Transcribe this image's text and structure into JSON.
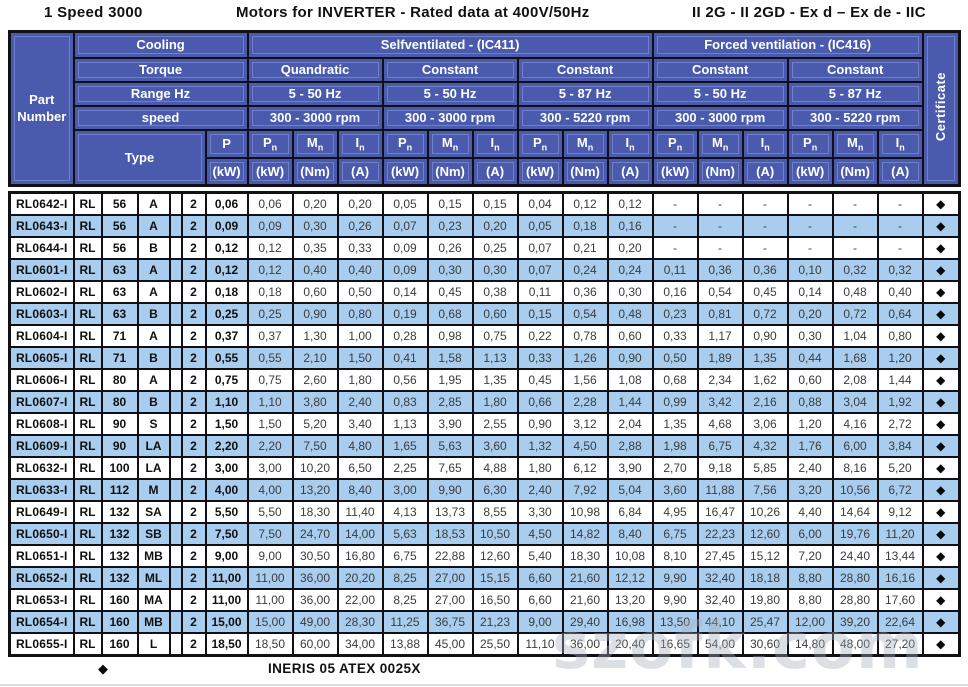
{
  "title": {
    "left": "1 Speed 3000",
    "center": "Motors for INVERTER - Rated data at 400V/50Hz",
    "right": "II 2G - II 2GD - Ex d – Ex de - IIC"
  },
  "header": {
    "part_label": "Part Number",
    "cooling_label": "Cooling",
    "torque_label": "Torque",
    "range_label": "Range Hz",
    "speed_label": "speed",
    "type_label": "Type",
    "p_label": "P",
    "p_unit": "(kW)",
    "certificate_label": "Certificate",
    "cooling_groups": [
      {
        "label": "Selfventilated - (IC411)",
        "span": 9
      },
      {
        "label": "Forced ventilation - (IC416)",
        "span": 6
      }
    ],
    "torque_groups": [
      "Quandratic",
      "Constant",
      "Constant",
      "Constant",
      "Constant"
    ],
    "range_groups": [
      "5 - 50 Hz",
      "5 - 50 Hz",
      "5 - 87 Hz",
      "5 - 50 Hz",
      "5 - 87 Hz"
    ],
    "speed_groups": [
      "300 - 3000 rpm",
      "300 - 3000 rpm",
      "300 - 5220 rpm",
      "300 - 3000 rpm",
      "300 - 5220 rpm"
    ],
    "measure": {
      "symbols": [
        "P",
        "M",
        "I"
      ],
      "sub": "n",
      "units": [
        "(kW)",
        "(Nm)",
        "(A)"
      ],
      "groups": 5
    }
  },
  "colors": {
    "header_blue": "#4a5bad",
    "row_blue": "#a9cdee",
    "border_black": "#101016"
  },
  "cert_symbol": "◆",
  "rows": [
    {
      "part": "RL0642-I",
      "series": "RL",
      "frame": "56",
      "size": "A",
      "poles": "2",
      "p": "0,06",
      "values": [
        "0,06",
        "0,20",
        "0,20",
        "0,05",
        "0,15",
        "0,15",
        "0,04",
        "0,12",
        "0,12",
        "-",
        "-",
        "-",
        "-",
        "-",
        "-"
      ]
    },
    {
      "part": "RL0643-I",
      "series": "RL",
      "frame": "56",
      "size": "A",
      "poles": "2",
      "p": "0,09",
      "values": [
        "0,09",
        "0,30",
        "0,26",
        "0,07",
        "0,23",
        "0,20",
        "0,05",
        "0,18",
        "0,16",
        "-",
        "-",
        "-",
        "-",
        "-",
        "-"
      ]
    },
    {
      "part": "RL0644-I",
      "series": "RL",
      "frame": "56",
      "size": "B",
      "poles": "2",
      "p": "0,12",
      "values": [
        "0,12",
        "0,35",
        "0,33",
        "0,09",
        "0,26",
        "0,25",
        "0,07",
        "0,21",
        "0,20",
        "-",
        "-",
        "-",
        "-",
        "-",
        "-"
      ]
    },
    {
      "part": "RL0601-I",
      "series": "RL",
      "frame": "63",
      "size": "A",
      "poles": "2",
      "p": "0,12",
      "values": [
        "0,12",
        "0,40",
        "0,40",
        "0,09",
        "0,30",
        "0,30",
        "0,07",
        "0,24",
        "0,24",
        "0,11",
        "0,36",
        "0,36",
        "0,10",
        "0,32",
        "0,32"
      ]
    },
    {
      "part": "RL0602-I",
      "series": "RL",
      "frame": "63",
      "size": "A",
      "poles": "2",
      "p": "0,18",
      "values": [
        "0,18",
        "0,60",
        "0,50",
        "0,14",
        "0,45",
        "0,38",
        "0,11",
        "0,36",
        "0,30",
        "0,16",
        "0,54",
        "0,45",
        "0,14",
        "0,48",
        "0,40"
      ]
    },
    {
      "part": "RL0603-I",
      "series": "RL",
      "frame": "63",
      "size": "B",
      "poles": "2",
      "p": "0,25",
      "values": [
        "0,25",
        "0,90",
        "0,80",
        "0,19",
        "0,68",
        "0,60",
        "0,15",
        "0,54",
        "0,48",
        "0,23",
        "0,81",
        "0,72",
        "0,20",
        "0,72",
        "0,64"
      ]
    },
    {
      "part": "RL0604-I",
      "series": "RL",
      "frame": "71",
      "size": "A",
      "poles": "2",
      "p": "0,37",
      "values": [
        "0,37",
        "1,30",
        "1,00",
        "0,28",
        "0,98",
        "0,75",
        "0,22",
        "0,78",
        "0,60",
        "0,33",
        "1,17",
        "0,90",
        "0,30",
        "1,04",
        "0,80"
      ]
    },
    {
      "part": "RL0605-I",
      "series": "RL",
      "frame": "71",
      "size": "B",
      "poles": "2",
      "p": "0,55",
      "values": [
        "0,55",
        "2,10",
        "1,50",
        "0,41",
        "1,58",
        "1,13",
        "0,33",
        "1,26",
        "0,90",
        "0,50",
        "1,89",
        "1,35",
        "0,44",
        "1,68",
        "1,20"
      ]
    },
    {
      "part": "RL0606-I",
      "series": "RL",
      "frame": "80",
      "size": "A",
      "poles": "2",
      "p": "0,75",
      "values": [
        "0,75",
        "2,60",
        "1,80",
        "0,56",
        "1,95",
        "1,35",
        "0,45",
        "1,56",
        "1,08",
        "0,68",
        "2,34",
        "1,62",
        "0,60",
        "2,08",
        "1,44"
      ]
    },
    {
      "part": "RL0607-I",
      "series": "RL",
      "frame": "80",
      "size": "B",
      "poles": "2",
      "p": "1,10",
      "values": [
        "1,10",
        "3,80",
        "2,40",
        "0,83",
        "2,85",
        "1,80",
        "0,66",
        "2,28",
        "1,44",
        "0,99",
        "3,42",
        "2,16",
        "0,88",
        "3,04",
        "1,92"
      ]
    },
    {
      "part": "RL0608-I",
      "series": "RL",
      "frame": "90",
      "size": "S",
      "poles": "2",
      "p": "1,50",
      "values": [
        "1,50",
        "5,20",
        "3,40",
        "1,13",
        "3,90",
        "2,55",
        "0,90",
        "3,12",
        "2,04",
        "1,35",
        "4,68",
        "3,06",
        "1,20",
        "4,16",
        "2,72"
      ]
    },
    {
      "part": "RL0609-I",
      "series": "RL",
      "frame": "90",
      "size": "LA",
      "poles": "2",
      "p": "2,20",
      "values": [
        "2,20",
        "7,50",
        "4,80",
        "1,65",
        "5,63",
        "3,60",
        "1,32",
        "4,50",
        "2,88",
        "1,98",
        "6,75",
        "4,32",
        "1,76",
        "6,00",
        "3,84"
      ]
    },
    {
      "part": "RL0632-I",
      "series": "RL",
      "frame": "100",
      "size": "LA",
      "poles": "2",
      "p": "3,00",
      "values": [
        "3,00",
        "10,20",
        "6,50",
        "2,25",
        "7,65",
        "4,88",
        "1,80",
        "6,12",
        "3,90",
        "2,70",
        "9,18",
        "5,85",
        "2,40",
        "8,16",
        "5,20"
      ]
    },
    {
      "part": "RL0633-I",
      "series": "RL",
      "frame": "112",
      "size": "M",
      "poles": "2",
      "p": "4,00",
      "values": [
        "4,00",
        "13,20",
        "8,40",
        "3,00",
        "9,90",
        "6,30",
        "2,40",
        "7,92",
        "5,04",
        "3,60",
        "11,88",
        "7,56",
        "3,20",
        "10,56",
        "6,72"
      ]
    },
    {
      "part": "RL0649-I",
      "series": "RL",
      "frame": "132",
      "size": "SA",
      "poles": "2",
      "p": "5,50",
      "values": [
        "5,50",
        "18,30",
        "11,40",
        "4,13",
        "13,73",
        "8,55",
        "3,30",
        "10,98",
        "6,84",
        "4,95",
        "16,47",
        "10,26",
        "4,40",
        "14,64",
        "9,12"
      ]
    },
    {
      "part": "RL0650-I",
      "series": "RL",
      "frame": "132",
      "size": "SB",
      "poles": "2",
      "p": "7,50",
      "values": [
        "7,50",
        "24,70",
        "14,00",
        "5,63",
        "18,53",
        "10,50",
        "4,50",
        "14,82",
        "8,40",
        "6,75",
        "22,23",
        "12,60",
        "6,00",
        "19,76",
        "11,20"
      ]
    },
    {
      "part": "RL0651-I",
      "series": "RL",
      "frame": "132",
      "size": "MB",
      "poles": "2",
      "p": "9,00",
      "values": [
        "9,00",
        "30,50",
        "16,80",
        "6,75",
        "22,88",
        "12,60",
        "5,40",
        "18,30",
        "10,08",
        "8,10",
        "27,45",
        "15,12",
        "7,20",
        "24,40",
        "13,44"
      ]
    },
    {
      "part": "RL0652-I",
      "series": "RL",
      "frame": "132",
      "size": "ML",
      "poles": "2",
      "p": "11,00",
      "values": [
        "11,00",
        "36,00",
        "20,20",
        "8,25",
        "27,00",
        "15,15",
        "6,60",
        "21,60",
        "12,12",
        "9,90",
        "32,40",
        "18,18",
        "8,80",
        "28,80",
        "16,16"
      ]
    },
    {
      "part": "RL0653-I",
      "series": "RL",
      "frame": "160",
      "size": "MA",
      "poles": "2",
      "p": "11,00",
      "values": [
        "11,00",
        "36,00",
        "22,00",
        "8,25",
        "27,00",
        "16,50",
        "6,60",
        "21,60",
        "13,20",
        "9,90",
        "32,40",
        "19,80",
        "8,80",
        "28,80",
        "17,60"
      ]
    },
    {
      "part": "RL0654-I",
      "series": "RL",
      "frame": "160",
      "size": "MB",
      "poles": "2",
      "p": "15,00",
      "values": [
        "15,00",
        "49,00",
        "28,30",
        "11,25",
        "36,75",
        "21,23",
        "9,00",
        "29,40",
        "16,98",
        "13,50",
        "44,10",
        "25,47",
        "12,00",
        "39,20",
        "22,64"
      ]
    },
    {
      "part": "RL0655-I",
      "series": "RL",
      "frame": "160",
      "size": "L",
      "poles": "2",
      "p": "18,50",
      "values": [
        "18,50",
        "60,00",
        "34,00",
        "13,88",
        "45,00",
        "25,50",
        "11,10",
        "36,00",
        "20,40",
        "16,65",
        "54,00",
        "30,60",
        "14,80",
        "48,00",
        "27,20"
      ]
    }
  ],
  "footer": {
    "symbol": "◆",
    "text": "INERIS 05 ATEX 0025X"
  },
  "watermark": {
    "text": "szofk.com"
  }
}
